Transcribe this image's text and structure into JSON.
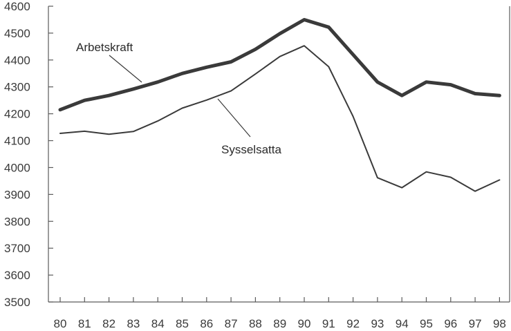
{
  "chart_data": {
    "type": "line",
    "title": "",
    "xlabel": "",
    "ylabel": "",
    "x": [
      "80",
      "81",
      "82",
      "83",
      "84",
      "85",
      "86",
      "87",
      "88",
      "89",
      "90",
      "91",
      "92",
      "93",
      "94",
      "95",
      "96",
      "97",
      "98"
    ],
    "ylim": [
      3500,
      4600
    ],
    "yticks": [
      3500,
      3600,
      3700,
      3800,
      3900,
      4000,
      4100,
      4200,
      4300,
      4400,
      4500,
      4600
    ],
    "grid": false,
    "series": [
      {
        "name": "Arbetskraft",
        "color": "#3a3a3a",
        "values": [
          4215,
          4250,
          4268,
          4292,
          4318,
          4350,
          4373,
          4393,
          4440,
          4498,
          4550,
          4522,
          4420,
          4318,
          4268,
          4318,
          4308,
          4275,
          4268
        ]
      },
      {
        "name": "Sysselsatta",
        "color": "#3a3a3a",
        "values": [
          4127,
          4135,
          4124,
          4134,
          4173,
          4221,
          4251,
          4285,
          4348,
          4413,
          4453,
          4375,
          4190,
          3962,
          3925,
          3984,
          3964,
          3912,
          3954
        ]
      }
    ]
  }
}
